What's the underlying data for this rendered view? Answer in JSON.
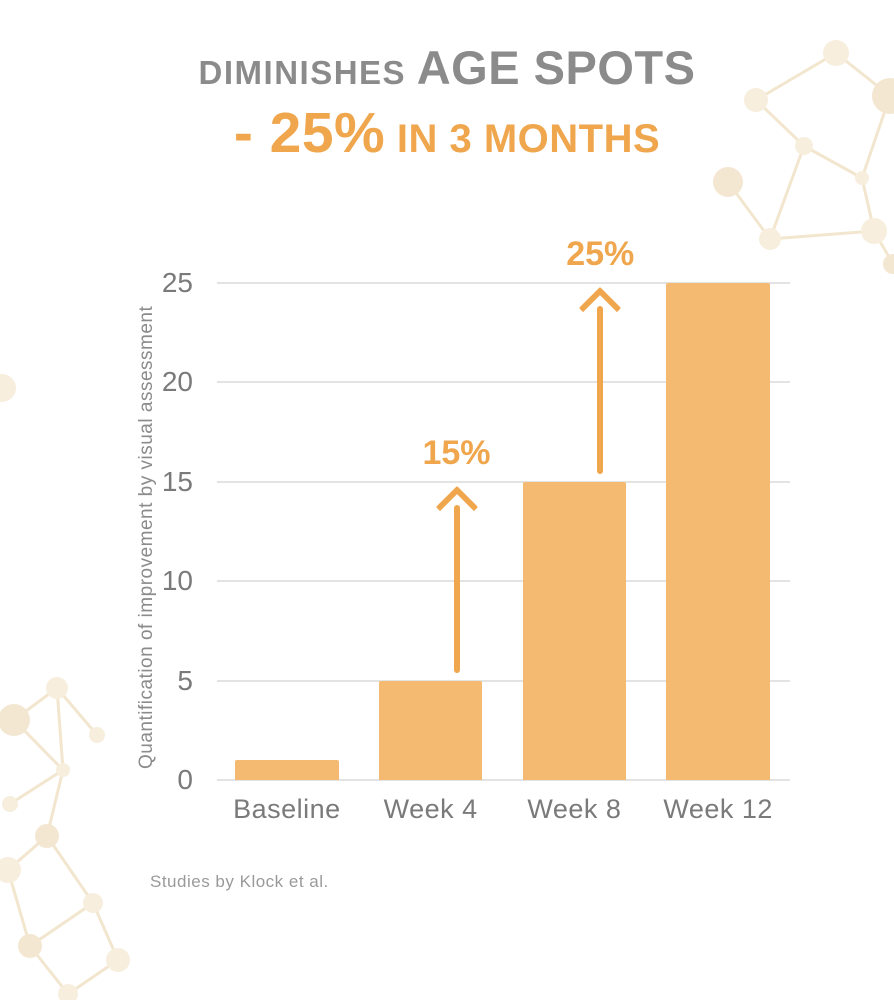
{
  "title": {
    "prefix": "DIMINISHES",
    "emphasis": "AGE SPOTS",
    "highlight": "- 25%",
    "suffix": "IN 3 MONTHS"
  },
  "footnote": "Studies by Klock et al.",
  "colors": {
    "bar": "#f5ba71",
    "accent": "#efa64d",
    "heading_gray": "#8b8b8b",
    "axis_text": "#7a7a7a",
    "gridline": "#e3e3e3"
  },
  "chart_data": {
    "type": "bar",
    "title": "Diminishes age spots - 25% in 3 months",
    "categories": [
      "Baseline",
      "Week 4",
      "Week 8",
      "Week 12"
    ],
    "values": [
      1,
      5,
      15,
      25
    ],
    "xlabel": "",
    "ylabel": "Quantification of improvement by visual assessment",
    "yticks": [
      0,
      5,
      10,
      15,
      20,
      25
    ],
    "ylim": [
      0,
      25
    ],
    "grid": true,
    "legend": false,
    "annotations": [
      {
        "label": "15%",
        "category": "Week 4",
        "from": 5,
        "to": 15
      },
      {
        "label": "25%",
        "category": "Week 8",
        "from": 15,
        "to": 25
      }
    ]
  }
}
